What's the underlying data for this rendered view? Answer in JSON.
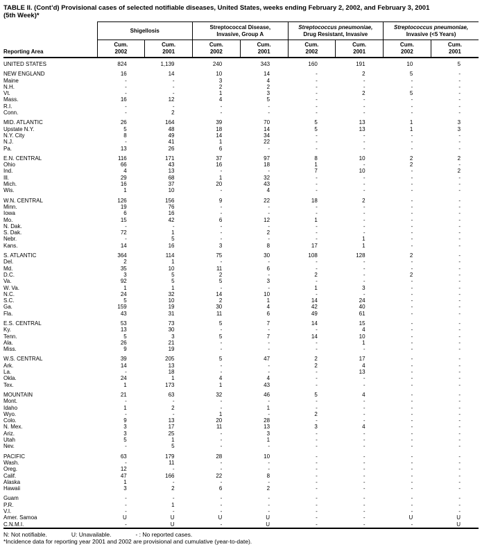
{
  "title": {
    "line1": "TABLE II. (Cont’d) Provisional cases of selected notifiable diseases, United States, weeks ending February 2, 2002, and February 3, 2001",
    "line2": "(5th Week)*"
  },
  "table": {
    "reporting_area_label": "Reporting Area",
    "groups": [
      {
        "line1": "Shigellosis",
        "line2": ""
      },
      {
        "line1": "Streptococcal Disease,",
        "line2": "Invasive, Group A"
      },
      {
        "line1": "Streptococcus pneumoniae,",
        "line2": "Drug Resistant, Invasive"
      },
      {
        "line1": "Streptococcus pneumoniae,",
        "line2": "Invasive (<5 Years)"
      }
    ],
    "sub_label": "Cum.",
    "years": [
      "2002",
      "2001",
      "2002",
      "2001",
      "2002",
      "2001",
      "2002",
      "2001"
    ],
    "sections": [
      {
        "rows": [
          {
            "area": "UNITED STATES",
            "region": true,
            "values": [
              "824",
              "1,139",
              "240",
              "343",
              "160",
              "191",
              "10",
              "5"
            ]
          }
        ]
      },
      {
        "rows": [
          {
            "area": "NEW ENGLAND",
            "region": true,
            "values": [
              "16",
              "14",
              "10",
              "14",
              "-",
              "2",
              "5",
              "-"
            ]
          },
          {
            "area": "Maine",
            "values": [
              "-",
              "-",
              "3",
              "4",
              "-",
              "-",
              "-",
              "-"
            ]
          },
          {
            "area": "N.H.",
            "values": [
              "-",
              "-",
              "2",
              "2",
              "-",
              "-",
              "-",
              "-"
            ]
          },
          {
            "area": "Vt.",
            "values": [
              "-",
              "-",
              "1",
              "3",
              "-",
              "2",
              "5",
              "-"
            ]
          },
          {
            "area": "Mass.",
            "values": [
              "16",
              "12",
              "4",
              "5",
              "-",
              "-",
              "-",
              "-"
            ]
          },
          {
            "area": "R.I.",
            "values": [
              "-",
              "-",
              "-",
              "-",
              "-",
              "-",
              "-",
              "-"
            ]
          },
          {
            "area": "Conn.",
            "values": [
              "-",
              "2",
              "-",
              "-",
              "-",
              "-",
              "-",
              "-"
            ]
          }
        ]
      },
      {
        "rows": [
          {
            "area": "MID. ATLANTIC",
            "region": true,
            "values": [
              "26",
              "164",
              "39",
              "70",
              "5",
              "13",
              "1",
              "3"
            ]
          },
          {
            "area": "Upstate N.Y.",
            "values": [
              "5",
              "48",
              "18",
              "14",
              "5",
              "13",
              "1",
              "3"
            ]
          },
          {
            "area": "N.Y. City",
            "values": [
              "8",
              "49",
              "14",
              "34",
              "-",
              "-",
              "-",
              "-"
            ]
          },
          {
            "area": "N.J.",
            "values": [
              "-",
              "41",
              "1",
              "22",
              "-",
              "-",
              "-",
              "-"
            ]
          },
          {
            "area": "Pa.",
            "values": [
              "13",
              "26",
              "6",
              "-",
              "-",
              "-",
              "-",
              "-"
            ]
          }
        ]
      },
      {
        "rows": [
          {
            "area": "E.N. CENTRAL",
            "region": true,
            "values": [
              "116",
              "171",
              "37",
              "97",
              "8",
              "10",
              "2",
              "2"
            ]
          },
          {
            "area": "Ohio",
            "values": [
              "66",
              "43",
              "16",
              "18",
              "1",
              "-",
              "2",
              "-"
            ]
          },
          {
            "area": "Ind.",
            "values": [
              "4",
              "13",
              "-",
              "-",
              "7",
              "10",
              "-",
              "2"
            ]
          },
          {
            "area": "Ill.",
            "values": [
              "29",
              "68",
              "1",
              "32",
              "-",
              "-",
              "-",
              "-"
            ]
          },
          {
            "area": "Mich.",
            "values": [
              "16",
              "37",
              "20",
              "43",
              "-",
              "-",
              "-",
              "-"
            ]
          },
          {
            "area": "Wis.",
            "values": [
              "1",
              "10",
              "-",
              "4",
              "-",
              "-",
              "-",
              "-"
            ]
          }
        ]
      },
      {
        "rows": [
          {
            "area": "W.N. CENTRAL",
            "region": true,
            "values": [
              "126",
              "156",
              "9",
              "22",
              "18",
              "2",
              "-",
              "-"
            ]
          },
          {
            "area": "Minn.",
            "values": [
              "19",
              "76",
              "-",
              "-",
              "-",
              "-",
              "-",
              "-"
            ]
          },
          {
            "area": "Iowa",
            "values": [
              "6",
              "16",
              "-",
              "-",
              "-",
              "-",
              "-",
              "-"
            ]
          },
          {
            "area": "Mo.",
            "values": [
              "15",
              "42",
              "6",
              "12",
              "1",
              "-",
              "-",
              "-"
            ]
          },
          {
            "area": "N. Dak.",
            "values": [
              "-",
              "-",
              "-",
              "-",
              "-",
              "-",
              "-",
              "-"
            ]
          },
          {
            "area": "S. Dak.",
            "values": [
              "72",
              "1",
              "-",
              "2",
              "-",
              "-",
              "-",
              "-"
            ]
          },
          {
            "area": "Nebr.",
            "values": [
              "-",
              "5",
              "-",
              "-",
              "-",
              "1",
              "-",
              "-"
            ]
          },
          {
            "area": "Kans.",
            "values": [
              "14",
              "16",
              "3",
              "8",
              "17",
              "1",
              "-",
              "-"
            ]
          }
        ]
      },
      {
        "rows": [
          {
            "area": "S. ATLANTIC",
            "region": true,
            "values": [
              "364",
              "114",
              "75",
              "30",
              "108",
              "128",
              "2",
              "-"
            ]
          },
          {
            "area": "Del.",
            "values": [
              "2",
              "1",
              "-",
              "-",
              "-",
              "-",
              "-",
              "-"
            ]
          },
          {
            "area": "Md.",
            "values": [
              "35",
              "10",
              "11",
              "6",
              "-",
              "-",
              "-",
              "-"
            ]
          },
          {
            "area": "D.C.",
            "values": [
              "3",
              "5",
              "2",
              "-",
              "2",
              "-",
              "2",
              "-"
            ]
          },
          {
            "area": "Va.",
            "values": [
              "92",
              "5",
              "5",
              "3",
              "-",
              "-",
              "-",
              "-"
            ]
          },
          {
            "area": "W. Va.",
            "values": [
              "1",
              "1",
              "-",
              "-",
              "1",
              "3",
              "-",
              "-"
            ]
          },
          {
            "area": "N.C.",
            "values": [
              "24",
              "32",
              "14",
              "10",
              "-",
              "-",
              "-",
              "-"
            ]
          },
          {
            "area": "S.C.",
            "values": [
              "5",
              "10",
              "2",
              "1",
              "14",
              "24",
              "-",
              "-"
            ]
          },
          {
            "area": "Ga.",
            "values": [
              "159",
              "19",
              "30",
              "4",
              "42",
              "40",
              "-",
              "-"
            ]
          },
          {
            "area": "Fla.",
            "values": [
              "43",
              "31",
              "11",
              "6",
              "49",
              "61",
              "-",
              "-"
            ]
          }
        ]
      },
      {
        "rows": [
          {
            "area": "E.S. CENTRAL",
            "region": true,
            "values": [
              "53",
              "73",
              "5",
              "7",
              "14",
              "15",
              "-",
              "-"
            ]
          },
          {
            "area": "Ky.",
            "values": [
              "13",
              "30",
              "-",
              "-",
              "-",
              "4",
              "-",
              "-"
            ]
          },
          {
            "area": "Tenn.",
            "values": [
              "5",
              "3",
              "5",
              "7",
              "14",
              "10",
              "-",
              "-"
            ]
          },
          {
            "area": "Ala.",
            "values": [
              "26",
              "21",
              "-",
              "-",
              "-",
              "1",
              "-",
              "-"
            ]
          },
          {
            "area": "Miss.",
            "values": [
              "9",
              "19",
              "-",
              "-",
              "-",
              "-",
              "-",
              "-"
            ]
          }
        ]
      },
      {
        "rows": [
          {
            "area": "W.S. CENTRAL",
            "region": true,
            "values": [
              "39",
              "205",
              "5",
              "47",
              "2",
              "17",
              "-",
              "-"
            ]
          },
          {
            "area": "Ark.",
            "values": [
              "14",
              "13",
              "-",
              "-",
              "2",
              "4",
              "-",
              "-"
            ]
          },
          {
            "area": "La.",
            "values": [
              "-",
              "18",
              "-",
              "-",
              "-",
              "13",
              "-",
              "-"
            ]
          },
          {
            "area": "Okla.",
            "values": [
              "24",
              "1",
              "4",
              "4",
              "-",
              "-",
              "-",
              "-"
            ]
          },
          {
            "area": "Tex.",
            "values": [
              "1",
              "173",
              "1",
              "43",
              "-",
              "-",
              "-",
              "-"
            ]
          }
        ]
      },
      {
        "rows": [
          {
            "area": "MOUNTAIN",
            "region": true,
            "values": [
              "21",
              "63",
              "32",
              "46",
              "5",
              "4",
              "-",
              "-"
            ]
          },
          {
            "area": "Mont.",
            "values": [
              "-",
              "-",
              "-",
              "-",
              "-",
              "-",
              "-",
              "-"
            ]
          },
          {
            "area": "Idaho",
            "values": [
              "1",
              "2",
              "-",
              "1",
              "-",
              "-",
              "-",
              "-"
            ]
          },
          {
            "area": "Wyo.",
            "values": [
              "-",
              "-",
              "1",
              "-",
              "2",
              "-",
              "-",
              "-"
            ]
          },
          {
            "area": "Colo.",
            "values": [
              "9",
              "13",
              "20",
              "28",
              "-",
              "-",
              "-",
              "-"
            ]
          },
          {
            "area": "N. Mex.",
            "values": [
              "3",
              "17",
              "11",
              "13",
              "3",
              "4",
              "-",
              "-"
            ]
          },
          {
            "area": "Ariz.",
            "values": [
              "3",
              "25",
              "-",
              "3",
              "-",
              "-",
              "-",
              "-"
            ]
          },
          {
            "area": "Utah",
            "values": [
              "5",
              "1",
              "-",
              "1",
              "-",
              "-",
              "-",
              "-"
            ]
          },
          {
            "area": "Nev.",
            "values": [
              "-",
              "5",
              "-",
              "-",
              "-",
              "-",
              "-",
              "-"
            ]
          }
        ]
      },
      {
        "rows": [
          {
            "area": "PACIFIC",
            "region": true,
            "values": [
              "63",
              "179",
              "28",
              "10",
              "-",
              "-",
              "-",
              "-"
            ]
          },
          {
            "area": "Wash.",
            "values": [
              "-",
              "11",
              "-",
              "-",
              "-",
              "-",
              "-",
              "-"
            ]
          },
          {
            "area": "Oreg.",
            "values": [
              "12",
              "-",
              "-",
              "-",
              "-",
              "-",
              "-",
              "-"
            ]
          },
          {
            "area": "Calif.",
            "values": [
              "47",
              "166",
              "22",
              "8",
              "-",
              "-",
              "-",
              "-"
            ]
          },
          {
            "area": "Alaska",
            "values": [
              "1",
              "-",
              "-",
              "-",
              "-",
              "-",
              "-",
              "-"
            ]
          },
          {
            "area": "Hawaii",
            "values": [
              "3",
              "2",
              "6",
              "2",
              "-",
              "-",
              "-",
              "-"
            ]
          }
        ]
      },
      {
        "rows": [
          {
            "area": "Guam",
            "values": [
              "-",
              "-",
              "-",
              "-",
              "-",
              "-",
              "-",
              "-"
            ]
          },
          {
            "area": "P.R.",
            "values": [
              "-",
              "1",
              "-",
              "-",
              "-",
              "-",
              "-",
              "-"
            ]
          },
          {
            "area": "V.I.",
            "values": [
              "-",
              "-",
              "-",
              "-",
              "-",
              "-",
              "-",
              "-"
            ]
          },
          {
            "area": "Amer. Samoa",
            "values": [
              "U",
              "U",
              "U",
              "U",
              "-",
              "-",
              "U",
              "U"
            ]
          },
          {
            "area": "C.N.M.I.",
            "values": [
              "-",
              "U",
              "-",
              "U",
              "-",
              "-",
              "-",
              "U"
            ]
          }
        ]
      }
    ]
  },
  "footnotes": {
    "part1": "N: Not notifiable.",
    "part2": "U: Unavailable.",
    "part3": "- : No reported cases.",
    "line2": "*Incidence data for reporting year 2001 and 2002 are provisional and cumulative (year-to-date)."
  }
}
